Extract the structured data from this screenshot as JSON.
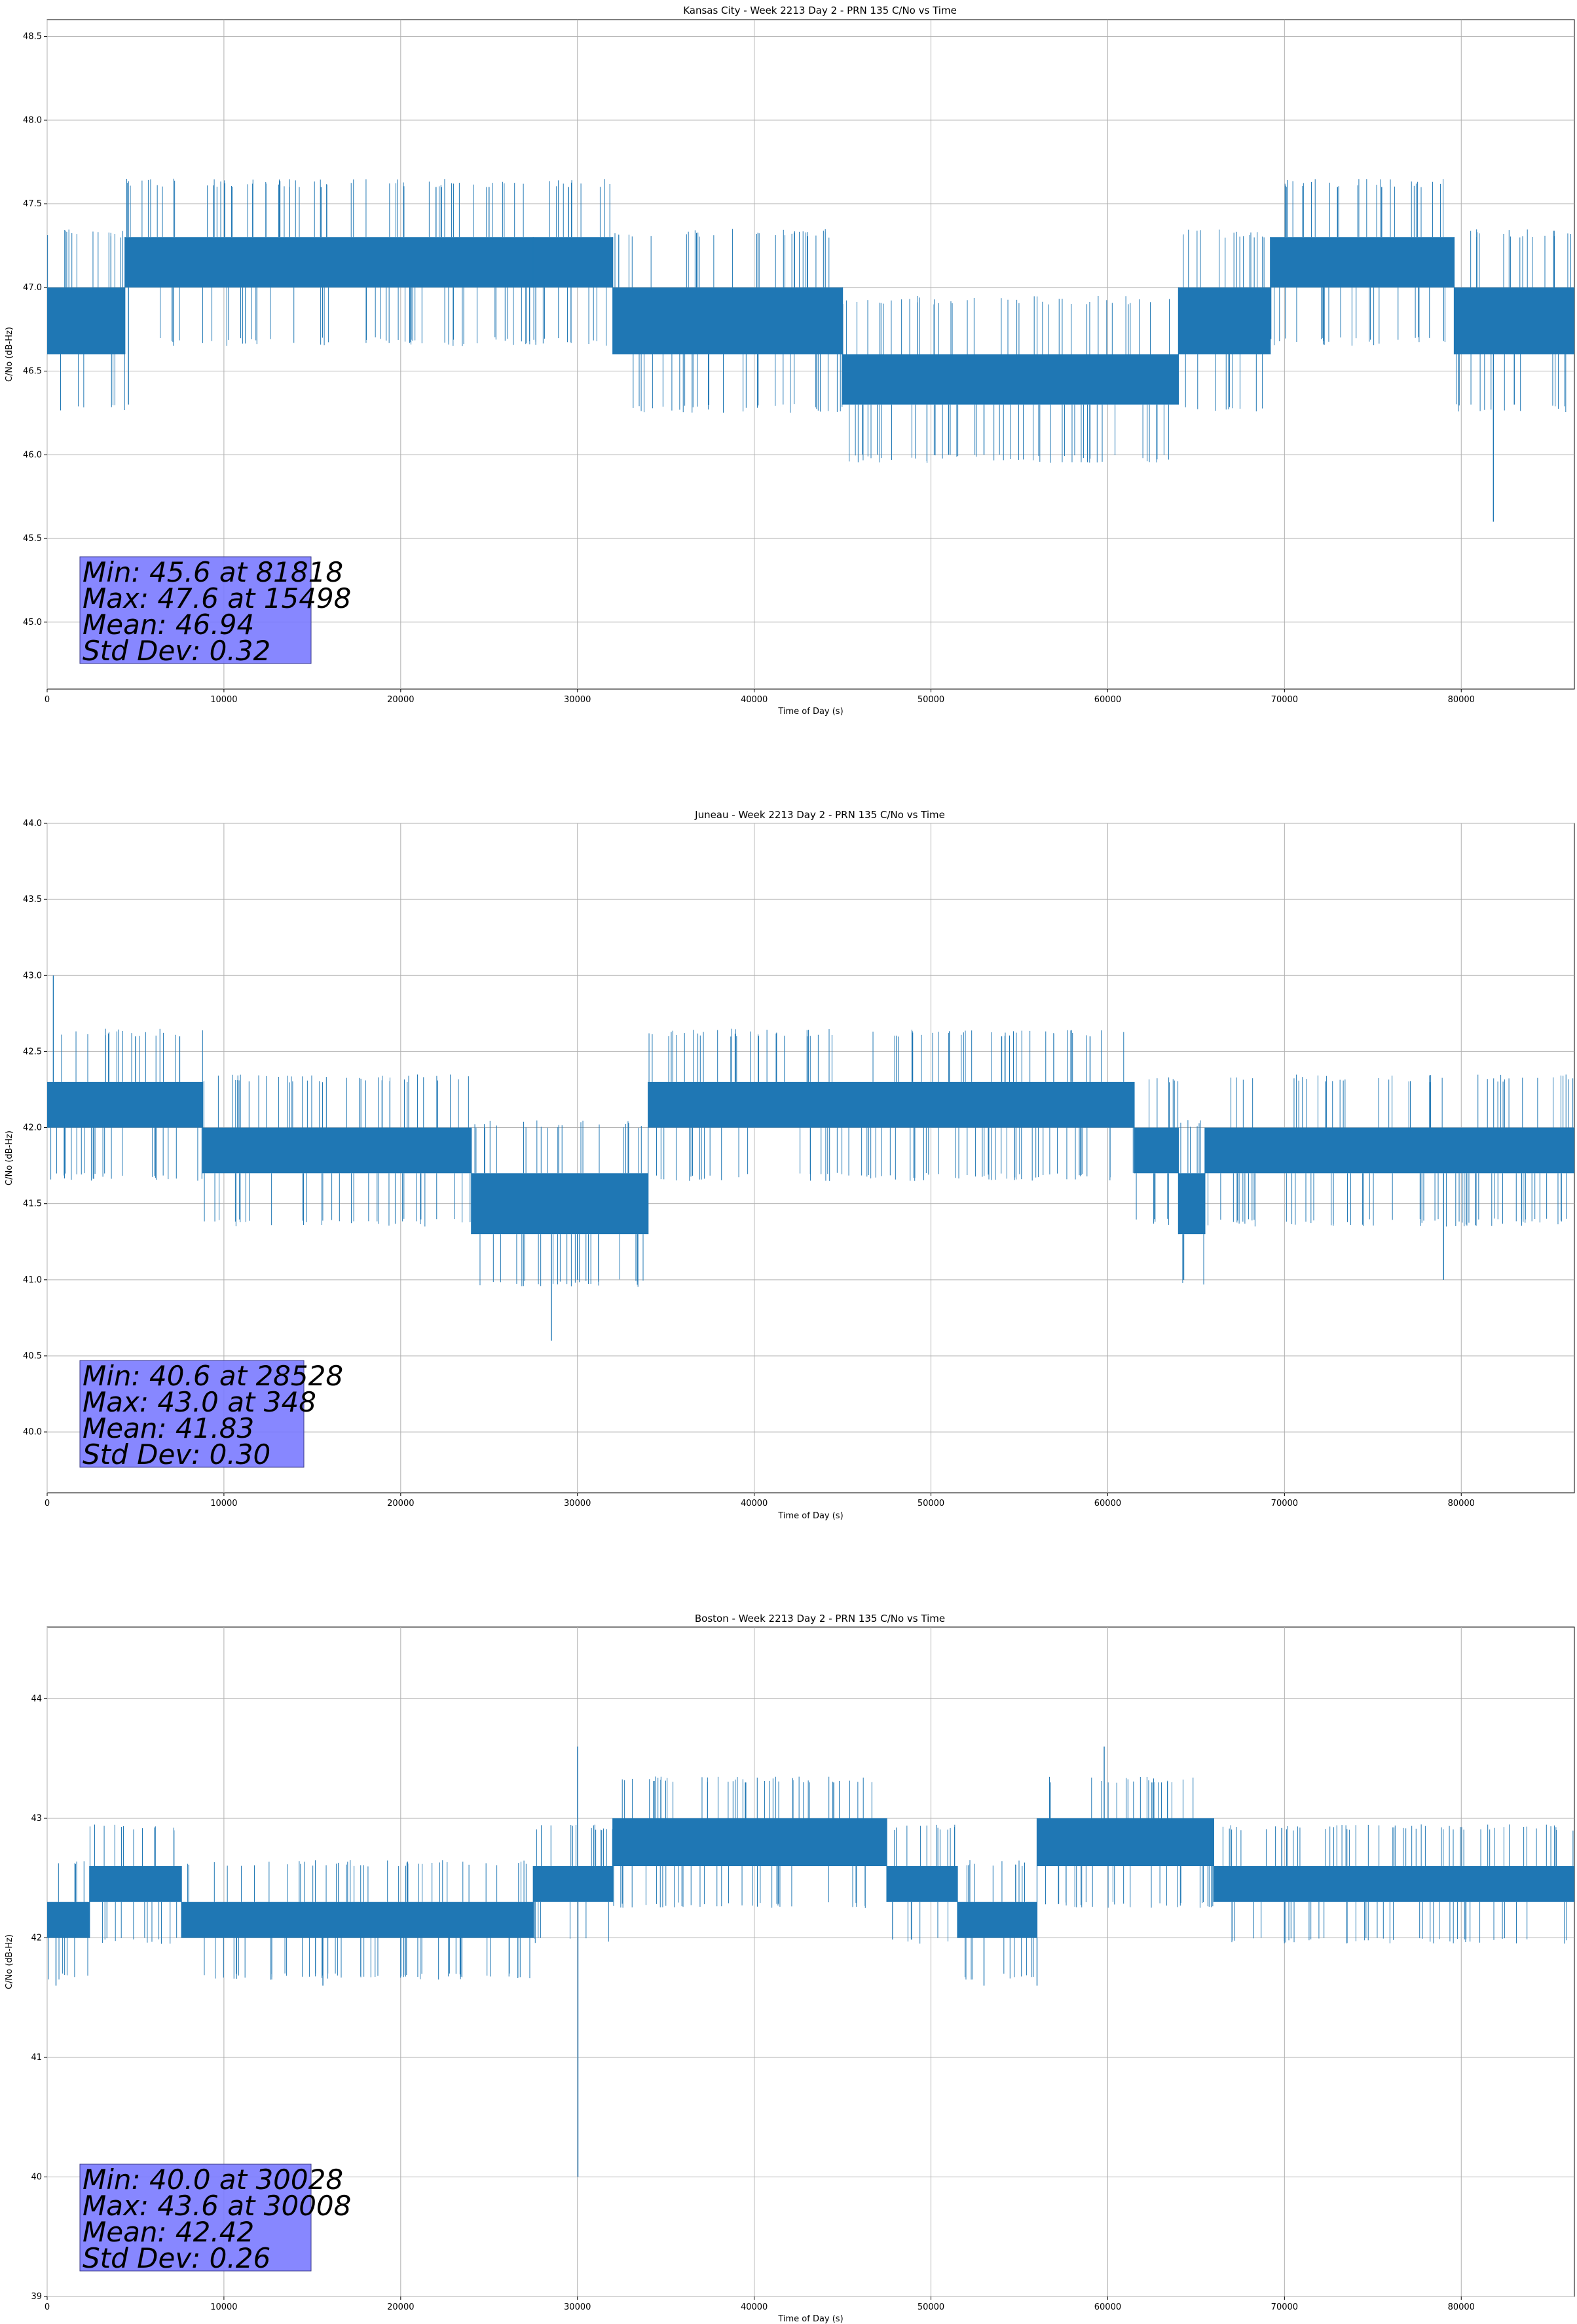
{
  "colors": {
    "series": "#1f77b4",
    "grid": "#b0b0b0",
    "stats_box": "#7a7aff"
  },
  "chart_data": [
    {
      "type": "line",
      "title": "Kansas City - Week 2213 Day 2 - PRN 135 C/No vs Time",
      "xlabel": "Time of Day (s)",
      "ylabel": "C/No (dB-Hz)",
      "xlim": [
        0,
        86400
      ],
      "ylim": [
        44.6,
        48.6
      ],
      "xticks": [
        0,
        10000,
        20000,
        30000,
        40000,
        50000,
        60000,
        70000,
        80000
      ],
      "yticks": [
        45.0,
        45.5,
        46.0,
        46.5,
        47.0,
        47.5,
        48.0,
        48.5
      ],
      "ytick_labels": [
        "45.0",
        "45.5",
        "46.0",
        "46.5",
        "47.0",
        "47.5",
        "48.0",
        "48.5"
      ],
      "grid": true,
      "band_segments": [
        {
          "x": [
            0,
            4400
          ],
          "low": 46.6,
          "high": 47.0
        },
        {
          "x": [
            4400,
            27500
          ],
          "low": 47.0,
          "high": 47.3
        },
        {
          "x": [
            27500,
            32000
          ],
          "low": 47.0,
          "high": 47.3
        },
        {
          "x": [
            32000,
            45000
          ],
          "low": 46.6,
          "high": 47.0
        },
        {
          "x": [
            45000,
            64000
          ],
          "low": 46.3,
          "high": 46.6
        },
        {
          "x": [
            64000,
            69200
          ],
          "low": 46.6,
          "high": 47.0
        },
        {
          "x": [
            69200,
            79600
          ],
          "low": 47.0,
          "high": 47.3
        },
        {
          "x": [
            79600,
            86400
          ],
          "low": 46.6,
          "high": 47.0
        }
      ],
      "spikes": [
        {
          "x": 4600,
          "y": 46.3
        },
        {
          "x": 15498,
          "y": 47.6
        },
        {
          "x": 22000,
          "y": 47.6
        },
        {
          "x": 25000,
          "y": 47.6
        },
        {
          "x": 29500,
          "y": 47.6
        },
        {
          "x": 51000,
          "y": 46.0
        },
        {
          "x": 53000,
          "y": 46.0
        },
        {
          "x": 73000,
          "y": 47.6
        },
        {
          "x": 75500,
          "y": 47.6
        },
        {
          "x": 81818,
          "y": 45.6
        },
        {
          "x": 83000,
          "y": 46.3
        }
      ],
      "stats": {
        "min": "Min: 45.6 at 81818",
        "max": "Max: 47.6 at 15498",
        "mean": "Mean: 46.94",
        "std": "Std Dev: 0.32"
      }
    },
    {
      "type": "line",
      "title": "Juneau - Week 2213 Day 2 - PRN 135 C/No vs Time",
      "xlabel": "Time of Day (s)",
      "ylabel": "C/No (dB-Hz)",
      "xlim": [
        0,
        86400
      ],
      "ylim": [
        39.6,
        44.0
      ],
      "xticks": [
        0,
        10000,
        20000,
        30000,
        40000,
        50000,
        60000,
        70000,
        80000
      ],
      "yticks": [
        40.0,
        40.5,
        41.0,
        41.5,
        42.0,
        42.5,
        43.0,
        43.5,
        44.0
      ],
      "ytick_labels": [
        "40.0",
        "40.5",
        "41.0",
        "41.5",
        "42.0",
        "42.5",
        "43.0",
        "43.5",
        "44.0"
      ],
      "grid": true,
      "band_segments": [
        {
          "x": [
            0,
            8800
          ],
          "low": 42.0,
          "high": 42.3
        },
        {
          "x": [
            8800,
            24000
          ],
          "low": 41.7,
          "high": 42.0
        },
        {
          "x": [
            24000,
            34000
          ],
          "low": 41.3,
          "high": 41.7
        },
        {
          "x": [
            34000,
            61500
          ],
          "low": 42.0,
          "high": 42.3
        },
        {
          "x": [
            61500,
            64000
          ],
          "low": 41.7,
          "high": 42.0
        },
        {
          "x": [
            64000,
            65500
          ],
          "low": 41.3,
          "high": 41.7
        },
        {
          "x": [
            65500,
            86400
          ],
          "low": 41.7,
          "high": 42.0
        }
      ],
      "spikes": [
        {
          "x": 348,
          "y": 43.0
        },
        {
          "x": 5000,
          "y": 42.6
        },
        {
          "x": 7500,
          "y": 42.6
        },
        {
          "x": 28528,
          "y": 40.6
        },
        {
          "x": 30000,
          "y": 41.0
        },
        {
          "x": 43000,
          "y": 42.6
        },
        {
          "x": 54000,
          "y": 42.6
        },
        {
          "x": 59000,
          "y": 42.6
        },
        {
          "x": 64300,
          "y": 41.0
        },
        {
          "x": 79000,
          "y": 41.0
        }
      ],
      "stats": {
        "min": "Min: 40.6 at 28528",
        "max": "Max: 43.0 at 348",
        "mean": "Mean: 41.83",
        "std": "Std Dev: 0.30"
      }
    },
    {
      "type": "line",
      "title": "Boston - Week 2213 Day 2 - PRN 135 C/No vs Time",
      "xlabel": "Time of Day (s)",
      "ylabel": "C/No (dB-Hz)",
      "xlim": [
        0,
        86400
      ],
      "ylim": [
        39.0,
        44.6
      ],
      "xticks": [
        0,
        10000,
        20000,
        30000,
        40000,
        50000,
        60000,
        70000,
        80000
      ],
      "yticks": [
        39,
        40,
        41,
        42,
        43,
        44
      ],
      "ytick_labels": [
        "39",
        "40",
        "41",
        "42",
        "43",
        "44"
      ],
      "grid": true,
      "band_segments": [
        {
          "x": [
            0,
            2400
          ],
          "low": 42.0,
          "high": 42.3
        },
        {
          "x": [
            2400,
            7600
          ],
          "low": 42.3,
          "high": 42.6
        },
        {
          "x": [
            7600,
            27500
          ],
          "low": 42.0,
          "high": 42.3
        },
        {
          "x": [
            27500,
            32000
          ],
          "low": 42.3,
          "high": 42.6
        },
        {
          "x": [
            32000,
            47500
          ],
          "low": 42.6,
          "high": 43.0
        },
        {
          "x": [
            47500,
            51500
          ],
          "low": 42.3,
          "high": 42.6
        },
        {
          "x": [
            51500,
            56000
          ],
          "low": 42.0,
          "high": 42.3
        },
        {
          "x": [
            56000,
            66000
          ],
          "low": 42.6,
          "high": 43.0
        },
        {
          "x": [
            66000,
            86400
          ],
          "low": 42.3,
          "high": 42.6
        }
      ],
      "spikes": [
        {
          "x": 500,
          "y": 41.6
        },
        {
          "x": 15600,
          "y": 41.6
        },
        {
          "x": 30008,
          "y": 43.6
        },
        {
          "x": 30028,
          "y": 40.0
        },
        {
          "x": 39500,
          "y": 43.3
        },
        {
          "x": 44500,
          "y": 43.3
        },
        {
          "x": 53000,
          "y": 41.6
        },
        {
          "x": 56000,
          "y": 41.6
        },
        {
          "x": 59800,
          "y": 43.6
        },
        {
          "x": 62500,
          "y": 43.3
        }
      ],
      "stats": {
        "min": "Min: 40.0 at 30028",
        "max": "Max: 43.6 at 30008",
        "mean": "Mean: 42.42",
        "std": "Std Dev: 0.26"
      }
    }
  ]
}
